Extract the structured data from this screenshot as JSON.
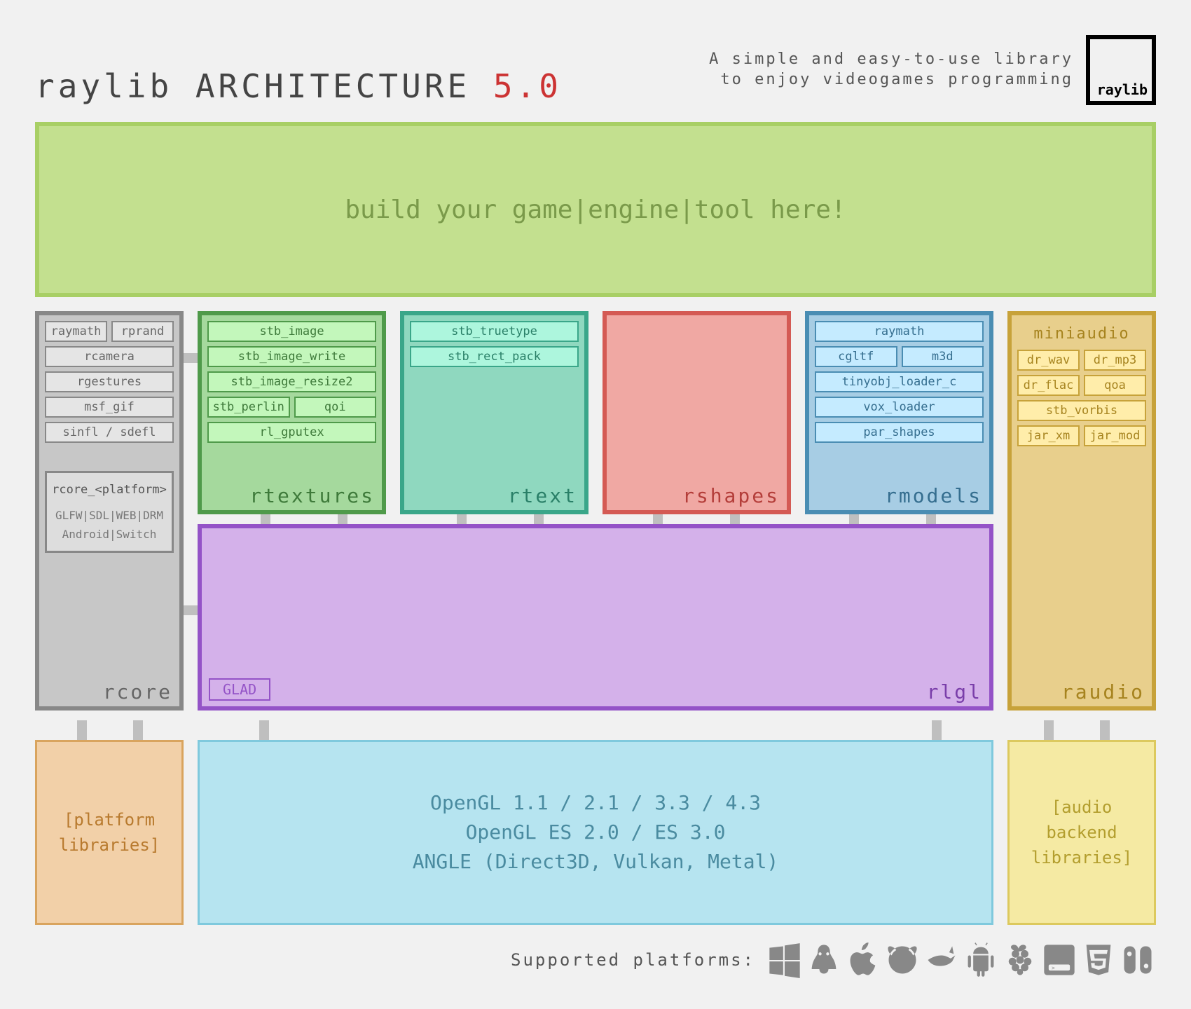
{
  "header": {
    "title_pre": "raylib ARCHITECTURE ",
    "version": "5.0",
    "subtitle_l1": "A simple and easy-to-use library",
    "subtitle_l2": "to enjoy videogames programming",
    "logo_text": "raylib"
  },
  "build_area": {
    "text": "build your game|engine|tool here!",
    "bg": "#c3e08f",
    "border": "#a8cf65",
    "fg": "#7a9a4a"
  },
  "rcore": {
    "label": "rcore",
    "bg": "#c7c7c7",
    "border": "#888888",
    "fg": "#666666",
    "deps": [
      [
        "raymath",
        "rprand"
      ],
      [
        "rcamera"
      ],
      [
        "rgestures"
      ],
      [
        "msf_gif"
      ],
      [
        "sinfl / sdefl"
      ]
    ],
    "platform_title": "rcore_<platform>",
    "platform_list": "GLFW|SDL|WEB|DRM\nAndroid|Switch"
  },
  "rtextures": {
    "label": "rtextures",
    "bg": "#a5d99d",
    "border": "#4f9a4a",
    "fg": "#3e7a3a",
    "deps": [
      [
        "stb_image"
      ],
      [
        "stb_image_write"
      ],
      [
        "stb_image_resize2"
      ],
      [
        "stb_perlin",
        "qoi"
      ],
      [
        "rl_gputex"
      ]
    ]
  },
  "rtext": {
    "label": "rtext",
    "bg": "#8fd8bf",
    "border": "#3aa689",
    "fg": "#2a8068",
    "deps": [
      [
        "stb_truetype"
      ],
      [
        "stb_rect_pack"
      ]
    ]
  },
  "rshapes": {
    "label": "rshapes",
    "bg": "#f0a8a3",
    "border": "#d45a54",
    "fg": "#b43e3a",
    "deps": []
  },
  "rmodels": {
    "label": "rmodels",
    "bg": "#a7cde4",
    "border": "#4a8db3",
    "fg": "#356e8f",
    "deps": [
      [
        "raymath"
      ],
      [
        "cgltf",
        "m3d"
      ],
      [
        "tinyobj_loader_c"
      ],
      [
        "vox_loader"
      ],
      [
        "par_shapes"
      ]
    ]
  },
  "rlgl": {
    "label": "rlgl",
    "bg": "#d4b1ea",
    "border": "#9453c7",
    "fg": "#7a3eaa",
    "glad": "GLAD"
  },
  "raudio": {
    "label": "raudio",
    "bg": "#e8cf8c",
    "border": "#c7a23a",
    "fg": "#a6831e",
    "mini": "miniaudio",
    "deps": [
      [
        "dr_wav",
        "dr_mp3"
      ],
      [
        "dr_flac",
        "qoa"
      ],
      [
        "stb_vorbis"
      ],
      [
        "jar_xm",
        "jar_mod"
      ]
    ]
  },
  "bottom": {
    "left": {
      "text": "[platform\nlibraries]",
      "bg": "#f2d0a8",
      "border": "#d9a45e",
      "fg": "#b87a2e"
    },
    "mid": {
      "l1": "OpenGL 1.1 / 2.1 / 3.3 / 4.3",
      "l2": "OpenGL ES 2.0 / ES 3.0",
      "l3": "ANGLE (Direct3D, Vulkan, Metal)",
      "bg": "#b6e4f0",
      "border": "#7fc9dd",
      "fg": "#4a8ba0"
    },
    "right": {
      "text": "[audio\nbackend\nlibraries]",
      "bg": "#f5eaa3",
      "border": "#dcc95e",
      "fg": "#b39e2e"
    }
  },
  "platforms_label": "Supported platforms:",
  "connector_color": "#bfbfbf"
}
